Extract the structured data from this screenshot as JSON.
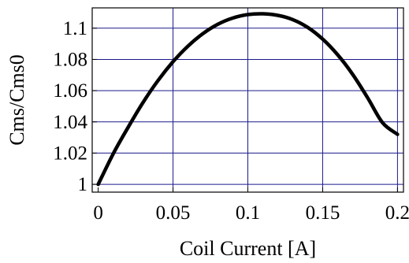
{
  "chart_data": {
    "type": "line",
    "title": "",
    "xlabel": "Coil Current [A]",
    "ylabel": "Cms/Cms0",
    "xlim": [
      -0.004,
      0.204
    ],
    "ylim": [
      0.995,
      1.113
    ],
    "x_ticks": [
      0,
      0.05,
      0.1,
      0.15,
      0.2
    ],
    "x_tick_labels": [
      "0",
      "0.05",
      "0.1",
      "0.15",
      "0.2"
    ],
    "y_ticks": [
      1.0,
      1.02,
      1.04,
      1.06,
      1.08,
      1.1
    ],
    "y_tick_labels": [
      "1",
      "1.02",
      "1.04",
      "1.06",
      "1.08",
      "1.1"
    ],
    "grid": true,
    "grid_color": "#1a1a8c",
    "line_color": "#000000",
    "series": [
      {
        "x": [
          0,
          0.01,
          0.02,
          0.03,
          0.04,
          0.05,
          0.06,
          0.07,
          0.08,
          0.09,
          0.1,
          0.11,
          0.12,
          0.13,
          0.14,
          0.15,
          0.16,
          0.17,
          0.18,
          0.19,
          0.2
        ],
        "values": [
          1.0,
          1.0195,
          1.0365,
          1.0525,
          1.0665,
          1.0785,
          1.0885,
          1.0965,
          1.1025,
          1.1065,
          1.1087,
          1.1092,
          1.1082,
          1.1055,
          1.1005,
          1.093,
          1.083,
          1.0705,
          1.0555,
          1.0395,
          1.032
        ]
      }
    ]
  }
}
